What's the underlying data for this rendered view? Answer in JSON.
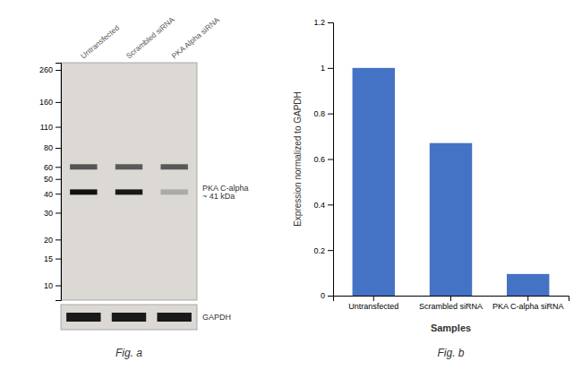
{
  "chart_data": [
    {
      "type": "blot",
      "title": "Fig. a",
      "categories": [
        "Untransfected",
        "Scrambled siRNA",
        "PKA Alpha siRNA"
      ],
      "log": "y",
      "ylim": [
        8,
        290
      ],
      "yticks": [
        260,
        160,
        110,
        80,
        60,
        50,
        40,
        30,
        20,
        15,
        10
      ],
      "series": [
        {
          "values": [
            60,
            60,
            60
          ],
          "colors": [
            "#555555",
            "#5a5a5a",
            "#585858"
          ]
        },
        {
          "values": [
            41,
            41,
            41
          ],
          "colors": [
            "#111111",
            "#181818",
            "#aaaaaa"
          ]
        },
        {
          "name": "GAPDH",
          "type": "control",
          "color": "#1a1a1a"
        }
      ],
      "annotations": [
        {
          "text": "PKA C-alpha\n~ 41 kDa",
          "y": 41
        }
      ]
    },
    {
      "type": "bar",
      "title": "Fig. b",
      "categories": [
        "Untransfected",
        "Scrambled siRNA",
        "PKA C-alpha siRNA"
      ],
      "values": [
        1.0,
        0.67,
        0.095
      ],
      "color": "#4472c4",
      "ylabel": "Expression normalized to GAPDH",
      "xlabel": "Samples",
      "ylim": [
        0,
        1.2
      ],
      "yticks": [
        0,
        0.2,
        0.4,
        0.6,
        0.8,
        1,
        1.2
      ]
    }
  ]
}
